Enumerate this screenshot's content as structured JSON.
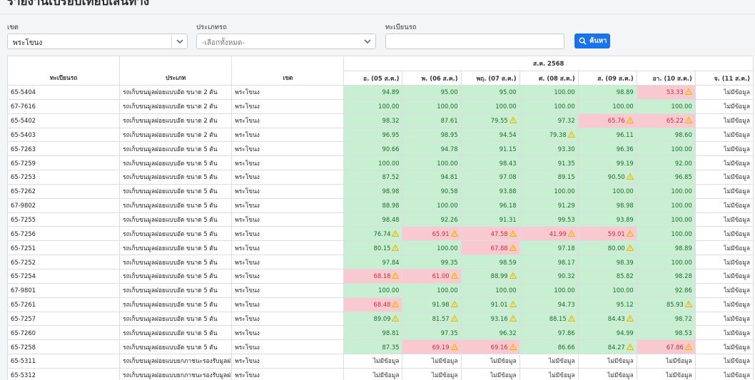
{
  "page": {
    "title": "รายงานเปรียบเทียบเส้นทาง"
  },
  "filters": {
    "zone_label": "เขต",
    "zone_value": "พระโขนง",
    "type_label": "ประเภทรถ",
    "type_value": "-เลือกทั้งหมด-",
    "plate_label": "ทะเบียนรถ",
    "plate_value": "",
    "search_label": "ค้นหา"
  },
  "table": {
    "headers": {
      "plate": "ทะเบียนรถ",
      "type": "ประเภท",
      "zone": "เขต",
      "month": "ส.ค. 2568"
    },
    "days": [
      "อ. (05 ส.ค.)",
      "พ. (06 ส.ค.)",
      "พฤ. (07 ส.ค.)",
      "ศ. (08 ส.ค.)",
      "ส. (09 ส.ค.)",
      "อา. (10 ส.ค.)",
      "จ. (11 ส.ค.)"
    ],
    "colors": {
      "good_bg": "#c9efd2",
      "good_text": "#1e6b2e",
      "bad_bg": "#f9c9d0",
      "bad_text": "#c62f3c",
      "warn": "#f2b705"
    },
    "rows": [
      {
        "plate": "65-5404",
        "type": "รถเก็บขนมูลฝอยแบบอัด ขนาด 2 ตัน",
        "zone": "พระโขนง",
        "cells": [
          {
            "v": "94.89",
            "s": "g"
          },
          {
            "v": "95.00",
            "s": "g"
          },
          {
            "v": "95.00",
            "s": "g"
          },
          {
            "v": "100.00",
            "s": "g"
          },
          {
            "v": "98.89",
            "s": "g"
          },
          {
            "v": "53.33",
            "s": "r",
            "w": true
          },
          {
            "v": "ไม่มีข้อมูล",
            "s": "n"
          }
        ]
      },
      {
        "plate": "67-7616",
        "type": "รถเก็บขนมูลฝอยแบบอัด ขนาด 2 ตัน",
        "zone": "พระโขนง",
        "cells": [
          {
            "v": "100.00",
            "s": "g"
          },
          {
            "v": "100.00",
            "s": "g"
          },
          {
            "v": "100.00",
            "s": "g"
          },
          {
            "v": "100.00",
            "s": "g"
          },
          {
            "v": "100.00",
            "s": "g"
          },
          {
            "v": "100.00",
            "s": "g"
          },
          {
            "v": "ไม่มีข้อมูล",
            "s": "n"
          }
        ]
      },
      {
        "plate": "65-5402",
        "type": "รถเก็บขนมูลฝอยแบบอัด ขนาด 2 ตัน",
        "zone": "พระโขนง",
        "cells": [
          {
            "v": "98.32",
            "s": "g"
          },
          {
            "v": "87.61",
            "s": "g"
          },
          {
            "v": "79.55",
            "s": "g",
            "w": true
          },
          {
            "v": "97.32",
            "s": "g"
          },
          {
            "v": "65.76",
            "s": "r",
            "w": true
          },
          {
            "v": "65.22",
            "s": "r",
            "w": true
          },
          {
            "v": "ไม่มีข้อมูล",
            "s": "n"
          }
        ]
      },
      {
        "plate": "65-5403",
        "type": "รถเก็บขนมูลฝอยแบบอัด ขนาด 2 ตัน",
        "zone": "พระโขนง",
        "cells": [
          {
            "v": "96.95",
            "s": "g"
          },
          {
            "v": "98.95",
            "s": "g"
          },
          {
            "v": "94.54",
            "s": "g"
          },
          {
            "v": "79.38",
            "s": "g",
            "w": true
          },
          {
            "v": "96.11",
            "s": "g"
          },
          {
            "v": "98.60",
            "s": "g"
          },
          {
            "v": "ไม่มีข้อมูล",
            "s": "n"
          }
        ]
      },
      {
        "plate": "65-7263",
        "type": "รถเก็บขนมูลฝอยแบบอัด ขนาด 5 ตัน",
        "zone": "พระโขนง",
        "cells": [
          {
            "v": "90.66",
            "s": "g"
          },
          {
            "v": "94.78",
            "s": "g"
          },
          {
            "v": "91.15",
            "s": "g"
          },
          {
            "v": "93.30",
            "s": "g"
          },
          {
            "v": "96.36",
            "s": "g"
          },
          {
            "v": "100.00",
            "s": "g"
          },
          {
            "v": "ไม่มีข้อมูล",
            "s": "n"
          }
        ]
      },
      {
        "plate": "65-7259",
        "type": "รถเก็บขนมูลฝอยแบบอัด ขนาด 5 ตัน",
        "zone": "พระโขนง",
        "cells": [
          {
            "v": "100.00",
            "s": "g"
          },
          {
            "v": "100.00",
            "s": "g"
          },
          {
            "v": "98.43",
            "s": "g"
          },
          {
            "v": "91.35",
            "s": "g"
          },
          {
            "v": "99.19",
            "s": "g"
          },
          {
            "v": "92.00",
            "s": "g"
          },
          {
            "v": "ไม่มีข้อมูล",
            "s": "n"
          }
        ]
      },
      {
        "plate": "65-7253",
        "type": "รถเก็บขนมูลฝอยแบบอัด ขนาด 5 ตัน",
        "zone": "พระโขนง",
        "cells": [
          {
            "v": "87.52",
            "s": "g"
          },
          {
            "v": "94.81",
            "s": "g"
          },
          {
            "v": "97.08",
            "s": "g"
          },
          {
            "v": "89.15",
            "s": "g"
          },
          {
            "v": "90.50",
            "s": "g",
            "w": true
          },
          {
            "v": "96.85",
            "s": "g"
          },
          {
            "v": "ไม่มีข้อมูล",
            "s": "n"
          }
        ]
      },
      {
        "plate": "65-7262",
        "type": "รถเก็บขนมูลฝอยแบบอัด ขนาด 5 ตัน",
        "zone": "พระโขนง",
        "cells": [
          {
            "v": "98.98",
            "s": "g"
          },
          {
            "v": "90.58",
            "s": "g"
          },
          {
            "v": "93.88",
            "s": "g"
          },
          {
            "v": "100.00",
            "s": "g"
          },
          {
            "v": "100.00",
            "s": "g"
          },
          {
            "v": "100.00",
            "s": "g"
          },
          {
            "v": "ไม่มีข้อมูล",
            "s": "n"
          }
        ]
      },
      {
        "plate": "67-9802",
        "type": "รถเก็บขนมูลฝอยแบบอัด ขนาด 5 ตัน",
        "zone": "พระโขนง",
        "cells": [
          {
            "v": "88.98",
            "s": "g"
          },
          {
            "v": "100.00",
            "s": "g"
          },
          {
            "v": "96.18",
            "s": "g"
          },
          {
            "v": "91.29",
            "s": "g"
          },
          {
            "v": "98.98",
            "s": "g"
          },
          {
            "v": "100.00",
            "s": "g"
          },
          {
            "v": "ไม่มีข้อมูล",
            "s": "n"
          }
        ]
      },
      {
        "plate": "65-7255",
        "type": "รถเก็บขนมูลฝอยแบบอัด ขนาด 5 ตัน",
        "zone": "พระโขนง",
        "cells": [
          {
            "v": "98.48",
            "s": "g"
          },
          {
            "v": "92.26",
            "s": "g"
          },
          {
            "v": "91.31",
            "s": "g"
          },
          {
            "v": "99.53",
            "s": "g"
          },
          {
            "v": "93.89",
            "s": "g"
          },
          {
            "v": "100.00",
            "s": "g"
          },
          {
            "v": "ไม่มีข้อมูล",
            "s": "n"
          }
        ]
      },
      {
        "plate": "65-7256",
        "type": "รถเก็บขนมูลฝอยแบบอัด ขนาด 5 ตัน",
        "zone": "พระโขนง",
        "cells": [
          {
            "v": "76.74",
            "s": "g",
            "w": true
          },
          {
            "v": "65.91",
            "s": "r",
            "w": true
          },
          {
            "v": "47.58",
            "s": "r",
            "w": true
          },
          {
            "v": "41.99",
            "s": "r",
            "w": true
          },
          {
            "v": "59.01",
            "s": "r",
            "w": true
          },
          {
            "v": "100.00",
            "s": "g"
          },
          {
            "v": "ไม่มีข้อมูล",
            "s": "n"
          }
        ]
      },
      {
        "plate": "65-7251",
        "type": "รถเก็บขนมูลฝอยแบบอัด ขนาด 5 ตัน",
        "zone": "พระโขนง",
        "cells": [
          {
            "v": "80.15",
            "s": "g",
            "w": true
          },
          {
            "v": "100.00",
            "s": "g"
          },
          {
            "v": "67.88",
            "s": "r",
            "w": true
          },
          {
            "v": "97.18",
            "s": "g"
          },
          {
            "v": "80.00",
            "s": "g",
            "w": true
          },
          {
            "v": "98.89",
            "s": "g"
          },
          {
            "v": "ไม่มีข้อมูล",
            "s": "n"
          }
        ]
      },
      {
        "plate": "65-7252",
        "type": "รถเก็บขนมูลฝอยแบบอัด ขนาด 5 ตัน",
        "zone": "พระโขนง",
        "cells": [
          {
            "v": "97.84",
            "s": "g"
          },
          {
            "v": "99.35",
            "s": "g"
          },
          {
            "v": "98.59",
            "s": "g"
          },
          {
            "v": "98.17",
            "s": "g"
          },
          {
            "v": "98.39",
            "s": "g"
          },
          {
            "v": "100.00",
            "s": "g"
          },
          {
            "v": "ไม่มีข้อมูล",
            "s": "n"
          }
        ]
      },
      {
        "plate": "65-7254",
        "type": "รถเก็บขนมูลฝอยแบบอัด ขนาด 5 ตัน",
        "zone": "พระโขนง",
        "cells": [
          {
            "v": "68.18",
            "s": "r",
            "w": true
          },
          {
            "v": "61.00",
            "s": "r",
            "w": true
          },
          {
            "v": "88.99",
            "s": "g",
            "w": true
          },
          {
            "v": "90.32",
            "s": "g"
          },
          {
            "v": "85.82",
            "s": "g"
          },
          {
            "v": "98.28",
            "s": "g"
          },
          {
            "v": "ไม่มีข้อมูล",
            "s": "n"
          }
        ]
      },
      {
        "plate": "67-9801",
        "type": "รถเก็บขนมูลฝอยแบบอัด ขนาด 5 ตัน",
        "zone": "พระโขนง",
        "cells": [
          {
            "v": "100.00",
            "s": "g"
          },
          {
            "v": "100.00",
            "s": "g"
          },
          {
            "v": "100.00",
            "s": "g"
          },
          {
            "v": "100.00",
            "s": "g"
          },
          {
            "v": "100.00",
            "s": "g"
          },
          {
            "v": "92.86",
            "s": "g"
          },
          {
            "v": "ไม่มีข้อมูล",
            "s": "n"
          }
        ]
      },
      {
        "plate": "65-7261",
        "type": "รถเก็บขนมูลฝอยแบบอัด ขนาด 5 ตัน",
        "zone": "พระโขนง",
        "cells": [
          {
            "v": "68.48",
            "s": "r",
            "w": true
          },
          {
            "v": "91.98",
            "s": "g",
            "w": true
          },
          {
            "v": "91.01",
            "s": "g",
            "w": true
          },
          {
            "v": "94.73",
            "s": "g"
          },
          {
            "v": "95.12",
            "s": "g"
          },
          {
            "v": "85.93",
            "s": "g",
            "w": true
          },
          {
            "v": "ไม่มีข้อมูล",
            "s": "n"
          }
        ]
      },
      {
        "plate": "65-7257",
        "type": "รถเก็บขนมูลฝอยแบบอัด ขนาด 5 ตัน",
        "zone": "พระโขนง",
        "cells": [
          {
            "v": "89.09",
            "s": "g",
            "w": true
          },
          {
            "v": "81.57",
            "s": "g",
            "w": true
          },
          {
            "v": "93.16",
            "s": "g",
            "w": true
          },
          {
            "v": "88.15",
            "s": "g",
            "w": true
          },
          {
            "v": "84.43",
            "s": "g",
            "w": true
          },
          {
            "v": "98.72",
            "s": "g"
          },
          {
            "v": "ไม่มีข้อมูล",
            "s": "n"
          }
        ]
      },
      {
        "plate": "65-7260",
        "type": "รถเก็บขนมูลฝอยแบบอัด ขนาด 5 ตัน",
        "zone": "พระโขนง",
        "cells": [
          {
            "v": "98.81",
            "s": "g"
          },
          {
            "v": "97.35",
            "s": "g"
          },
          {
            "v": "96.32",
            "s": "g"
          },
          {
            "v": "97.86",
            "s": "g"
          },
          {
            "v": "94.99",
            "s": "g"
          },
          {
            "v": "98.53",
            "s": "g"
          },
          {
            "v": "ไม่มีข้อมูล",
            "s": "n"
          }
        ]
      },
      {
        "plate": "65-7258",
        "type": "รถเก็บขนมูลฝอยแบบอัด ขนาด 5 ตัน",
        "zone": "พระโขนง",
        "cells": [
          {
            "v": "87.35",
            "s": "g"
          },
          {
            "v": "69.19",
            "s": "r",
            "w": true
          },
          {
            "v": "69.16",
            "s": "r",
            "w": true
          },
          {
            "v": "86.66",
            "s": "g"
          },
          {
            "v": "84.27",
            "s": "g",
            "w": true
          },
          {
            "v": "67.86",
            "s": "r",
            "w": true
          },
          {
            "v": "ไม่มีข้อมูล",
            "s": "n"
          }
        ]
      },
      {
        "plate": "65-5311",
        "type": "รถเก็บขนมูลฝอยแบบยกภาชนะรองรับมูลฝอย ขนาด",
        "zone": "พระโขนง",
        "cells": [
          {
            "v": "ไม่มีข้อมูล",
            "s": "n"
          },
          {
            "v": "ไม่มีข้อมูล",
            "s": "n"
          },
          {
            "v": "ไม่มีข้อมูล",
            "s": "n"
          },
          {
            "v": "ไม่มีข้อมูล",
            "s": "n"
          },
          {
            "v": "ไม่มีข้อมูล",
            "s": "n"
          },
          {
            "v": "ไม่มีข้อมูล",
            "s": "n"
          },
          {
            "v": "ไม่มีข้อมูล",
            "s": "n"
          }
        ]
      },
      {
        "plate": "65-5312",
        "type": "รถเก็บขนมูลฝอยแบบยกภาชนะรองรับมูลฝอย ขนาด",
        "zone": "พระโขนง",
        "cells": [
          {
            "v": "ไม่มีข้อมูล",
            "s": "n"
          },
          {
            "v": "ไม่มีข้อมูล",
            "s": "n"
          },
          {
            "v": "ไม่มีข้อมูล",
            "s": "n"
          },
          {
            "v": "ไม่มีข้อมูล",
            "s": "n"
          },
          {
            "v": "ไม่มีข้อมูล",
            "s": "n"
          },
          {
            "v": "ไม่มีข้อมูล",
            "s": "n"
          },
          {
            "v": "ไม่มีข้อมูล",
            "s": "n"
          }
        ]
      }
    ]
  }
}
